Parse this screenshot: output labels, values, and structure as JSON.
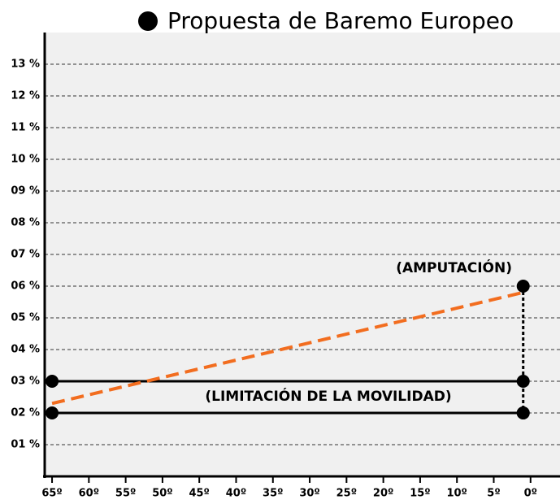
{
  "chart_data": {
    "type": "line",
    "title": "Propuesta de Baremo Europeo",
    "annotations": [
      "(AMPUTACIÓN)",
      "(LIMITACIÓN DE LA MOVILIDAD)"
    ],
    "xlim": [
      66,
      -4
    ],
    "xticks": [
      {
        "value": 65,
        "label": "65º"
      },
      {
        "value": 60,
        "label": "60º"
      },
      {
        "value": 55,
        "label": "55º"
      },
      {
        "value": 50,
        "label": "50º"
      },
      {
        "value": 45,
        "label": "45º"
      },
      {
        "value": 40,
        "label": "40º"
      },
      {
        "value": 35,
        "label": "35º"
      },
      {
        "value": 30,
        "label": "30º"
      },
      {
        "value": 25,
        "label": "25º"
      },
      {
        "value": 20,
        "label": "20º"
      },
      {
        "value": 15,
        "label": "15º"
      },
      {
        "value": 10,
        "label": "10º"
      },
      {
        "value": 5,
        "label": "5º"
      },
      {
        "value": 0,
        "label": "0º"
      }
    ],
    "ylim": [
      0,
      14
    ],
    "yticks": [
      {
        "value": 1,
        "label": "01 %"
      },
      {
        "value": 2,
        "label": "02 %"
      },
      {
        "value": 3,
        "label": "03 %"
      },
      {
        "value": 4,
        "label": "04 %"
      },
      {
        "value": 5,
        "label": "05 %"
      },
      {
        "value": 6,
        "label": "06 %"
      },
      {
        "value": 7,
        "label": "07 %"
      },
      {
        "value": 8,
        "label": "08 %"
      },
      {
        "value": 9,
        "label": "09 %"
      },
      {
        "value": 10,
        "label": "10 %"
      },
      {
        "value": 11,
        "label": "11 %"
      },
      {
        "value": 12,
        "label": "12 %"
      },
      {
        "value": 13,
        "label": "13 %"
      }
    ],
    "grid": true,
    "series": [
      {
        "color": "#000000",
        "style": "solid",
        "markers": true,
        "x": [
          65,
          1
        ],
        "values": [
          3,
          3
        ]
      },
      {
        "color": "#000000",
        "style": "solid",
        "markers": true,
        "x": [
          65,
          1
        ],
        "values": [
          2,
          2
        ]
      },
      {
        "color": "#000000",
        "style": "dashed",
        "markers": true,
        "x": [
          1,
          1
        ],
        "values": [
          6,
          2
        ]
      },
      {
        "color": "#f26d1f",
        "style": "dashed",
        "markers": false,
        "x": [
          65,
          1
        ],
        "values": [
          2.3,
          5.8
        ]
      }
    ]
  }
}
